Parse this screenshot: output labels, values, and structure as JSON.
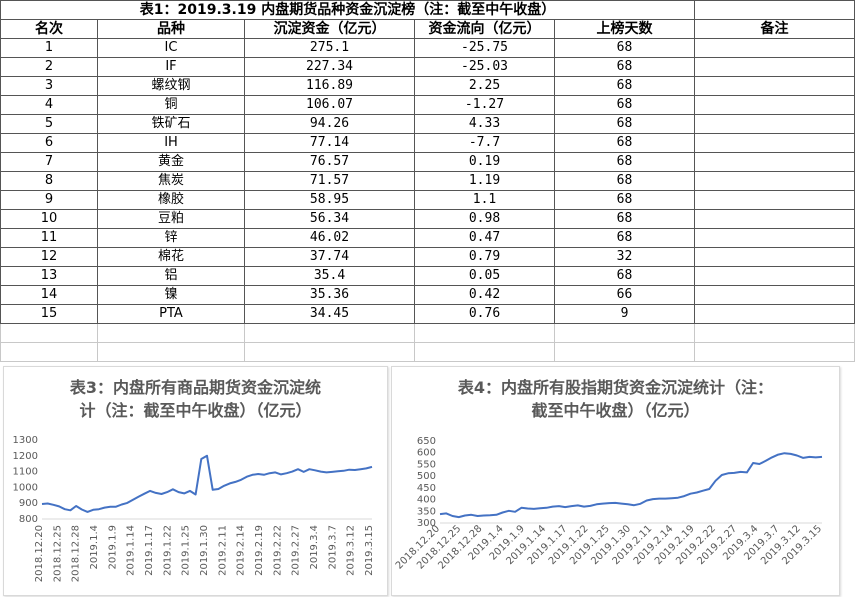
{
  "sheet": {
    "title": "表1：2019.3.19 内盘期货品种资金沉淀榜（注：截至中午收盘）",
    "headers": [
      "名次",
      "品种",
      "沉淀资金（亿元）",
      "资金流向（亿元）",
      "上榜天数",
      "备注"
    ],
    "rows": [
      [
        "1",
        "IC",
        "275.1",
        "-25.75",
        "68",
        ""
      ],
      [
        "2",
        "IF",
        "227.34",
        "-25.03",
        "68",
        ""
      ],
      [
        "3",
        "螺纹钢",
        "116.89",
        "2.25",
        "68",
        ""
      ],
      [
        "4",
        "铜",
        "106.07",
        "-1.27",
        "68",
        ""
      ],
      [
        "5",
        "铁矿石",
        "94.26",
        "4.33",
        "68",
        ""
      ],
      [
        "6",
        "IH",
        "77.14",
        "-7.7",
        "68",
        ""
      ],
      [
        "7",
        "黄金",
        "76.57",
        "0.19",
        "68",
        ""
      ],
      [
        "8",
        "焦炭",
        "71.57",
        "1.19",
        "68",
        ""
      ],
      [
        "9",
        "橡胶",
        "58.95",
        "1.1",
        "68",
        ""
      ],
      [
        "10",
        "豆粕",
        "56.34",
        "0.98",
        "68",
        ""
      ],
      [
        "11",
        "锌",
        "46.02",
        "0.47",
        "68",
        ""
      ],
      [
        "12",
        "棉花",
        "37.74",
        "0.79",
        "32",
        ""
      ],
      [
        "13",
        "铝",
        "35.4",
        "0.05",
        "68",
        ""
      ],
      [
        "14",
        "镍",
        "35.36",
        "0.42",
        "66",
        ""
      ],
      [
        "15",
        "PTA",
        "34.45",
        "0.76",
        "9",
        ""
      ]
    ]
  },
  "colors": {
    "line": "#4472c4",
    "grid": "#d9d9d9",
    "text": "#595959"
  },
  "chart_data": [
    {
      "type": "line",
      "title_line1": "表3：内盘所有商品期货资金沉淀统",
      "title_line2": "计（注：截至中午收盘）（亿元）",
      "ylim": [
        800,
        1300
      ],
      "yticks": [
        800,
        900,
        1000,
        1100,
        1200,
        1300
      ],
      "xtick_labels": [
        "2018.12.20",
        "2018.12.25",
        "2018.12.28",
        "2019.1.4",
        "2019.1.9",
        "2019.1.14",
        "2019.1.17",
        "2019.1.22",
        "2019.1.25",
        "2019.1.30",
        "2019.2.11",
        "2019.2.14",
        "2019.2.19",
        "2019.2.22",
        "2019.2.27",
        "2019.3.4",
        "2019.3.7",
        "2019.3.12",
        "2019.3.15"
      ],
      "grid": false,
      "legend": "none",
      "values": [
        895,
        898,
        890,
        880,
        862,
        855,
        882,
        860,
        845,
        858,
        862,
        872,
        878,
        878,
        892,
        902,
        922,
        942,
        960,
        978,
        965,
        958,
        970,
        988,
        970,
        962,
        978,
        955,
        1180,
        1200,
        985,
        990,
        1010,
        1025,
        1035,
        1048,
        1068,
        1080,
        1085,
        1080,
        1090,
        1095,
        1082,
        1090,
        1100,
        1115,
        1098,
        1115,
        1108,
        1100,
        1095,
        1098,
        1102,
        1105,
        1112,
        1110,
        1115,
        1120,
        1130
      ]
    },
    {
      "type": "line",
      "title_line1": "表4：内盘所有股指期货资金沉淀统计（注：",
      "title_line2": "截至中午收盘）（亿元）",
      "ylim": [
        300,
        650
      ],
      "yticks": [
        300,
        350,
        400,
        450,
        500,
        550,
        600,
        650
      ],
      "xtick_labels": [
        "2018.12.20",
        "2018.12.25",
        "2018.12.28",
        "2019.1.4",
        "2019.1.9",
        "2019.1.14",
        "2019.1.17",
        "2019.1.22",
        "2019.1.25",
        "2019.1.30",
        "2019.2.11",
        "2019.2.14",
        "2019.2.19",
        "2019.2.22",
        "2019.2.27",
        "2019.3.4",
        "2019.3.7",
        "2019.3.12",
        "2019.3.15"
      ],
      "grid": false,
      "legend": "none",
      "values": [
        338,
        341,
        330,
        325,
        332,
        335,
        330,
        332,
        333,
        335,
        345,
        352,
        348,
        365,
        362,
        360,
        363,
        365,
        370,
        372,
        368,
        372,
        375,
        370,
        373,
        380,
        383,
        385,
        386,
        383,
        380,
        376,
        382,
        396,
        402,
        404,
        404,
        406,
        408,
        415,
        425,
        430,
        438,
        445,
        480,
        505,
        512,
        514,
        518,
        516,
        556,
        552,
        565,
        580,
        592,
        598,
        595,
        588,
        578,
        582,
        580,
        582
      ]
    }
  ]
}
